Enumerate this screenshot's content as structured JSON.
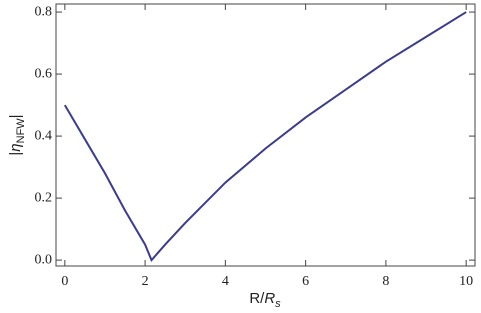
{
  "chart_data": {
    "type": "line",
    "xlabel": [
      "R/",
      "R",
      "s"
    ],
    "ylabel": [
      "|",
      "η",
      "NFW",
      "|"
    ],
    "x": [
      0,
      0.5,
      1,
      1.5,
      2,
      2.16,
      2.5,
      3,
      4,
      5,
      6,
      7,
      8,
      9,
      10
    ],
    "series": [
      {
        "color": "#3b3b8f",
        "values": [
          0.5,
          0.39,
          0.28,
          0.16,
          0.05,
          0,
          0.05,
          0.12,
          0.25,
          0.36,
          0.46,
          0.55,
          0.64,
          0.72,
          0.8
        ]
      }
    ],
    "xlim": [
      -0.22,
      10.22
    ],
    "ylim": [
      -0.019,
      0.826
    ],
    "xticks": [
      0,
      2,
      4,
      6,
      8,
      10
    ],
    "yticks": [
      {
        "value": 0,
        "label": "0.0"
      },
      0.2,
      0.4,
      0.6,
      0.8
    ]
  }
}
